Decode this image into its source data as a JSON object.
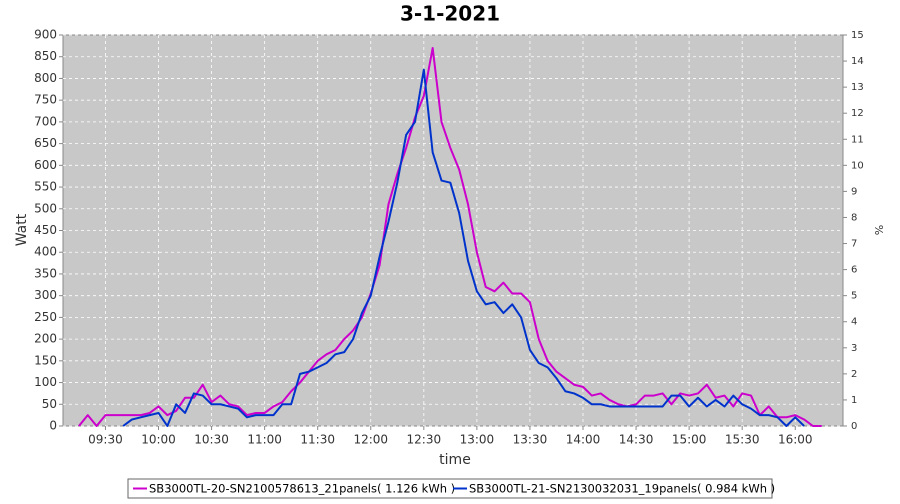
{
  "chart_data": {
    "type": "line",
    "title": "3-1-2021",
    "x_label": "time",
    "y_label": "Watt",
    "y2_label": "%",
    "x": [
      "09:15",
      "09:20",
      "09:25",
      "09:30",
      "09:35",
      "09:40",
      "09:45",
      "09:50",
      "09:55",
      "10:00",
      "10:05",
      "10:10",
      "10:15",
      "10:20",
      "10:25",
      "10:30",
      "10:35",
      "10:40",
      "10:45",
      "10:50",
      "10:55",
      "11:00",
      "11:05",
      "11:10",
      "11:15",
      "11:20",
      "11:25",
      "11:30",
      "11:35",
      "11:40",
      "11:45",
      "11:50",
      "11:55",
      "12:00",
      "12:05",
      "12:10",
      "12:15",
      "12:20",
      "12:25",
      "12:30",
      "12:35",
      "12:40",
      "12:45",
      "12:50",
      "12:55",
      "13:00",
      "13:05",
      "13:10",
      "13:15",
      "13:20",
      "13:25",
      "13:30",
      "13:35",
      "13:40",
      "13:45",
      "13:50",
      "13:55",
      "14:00",
      "14:05",
      "14:10",
      "14:15",
      "14:20",
      "14:25",
      "14:30",
      "14:35",
      "14:40",
      "14:45",
      "14:50",
      "14:55",
      "15:00",
      "15:05",
      "15:10",
      "15:15",
      "15:20",
      "15:25",
      "15:30",
      "15:35",
      "15:40",
      "15:45",
      "15:50",
      "15:55",
      "16:00",
      "16:05",
      "16:10",
      "16:15"
    ],
    "series": [
      {
        "name": "SB3000TL-20-SN2100578613_21panels( 1.126 kWh )",
        "color": "#cc00cc",
        "values": [
          0,
          25,
          0,
          25,
          25,
          25,
          25,
          25,
          30,
          45,
          25,
          35,
          65,
          65,
          95,
          55,
          70,
          50,
          45,
          25,
          30,
          30,
          45,
          55,
          80,
          100,
          125,
          150,
          165,
          175,
          200,
          220,
          250,
          305,
          370,
          510,
          580,
          640,
          710,
          760,
          870,
          700,
          640,
          590,
          510,
          400,
          320,
          310,
          330,
          305,
          305,
          285,
          200,
          150,
          125,
          110,
          95,
          90,
          70,
          75,
          60,
          50,
          45,
          50,
          70,
          70,
          75,
          50,
          75,
          70,
          75,
          95,
          65,
          70,
          45,
          75,
          70,
          25,
          45,
          20,
          20,
          25,
          15,
          0,
          0
        ]
      },
      {
        "name": "SB3000TL-21-SN2130032031_19panels( 0.984 kWh )",
        "color": "#0033cc",
        "values": [
          null,
          null,
          null,
          null,
          null,
          0,
          15,
          20,
          25,
          30,
          0,
          50,
          30,
          75,
          70,
          50,
          50,
          45,
          40,
          20,
          25,
          25,
          25,
          50,
          50,
          120,
          125,
          135,
          145,
          165,
          170,
          200,
          260,
          300,
          390,
          470,
          560,
          670,
          700,
          820,
          630,
          565,
          560,
          490,
          380,
          310,
          280,
          285,
          260,
          280,
          250,
          175,
          145,
          135,
          110,
          80,
          75,
          65,
          50,
          50,
          45,
          45,
          45,
          45,
          45,
          45,
          45,
          70,
          70,
          45,
          65,
          45,
          60,
          45,
          70,
          50,
          40,
          25,
          25,
          20,
          0,
          20,
          0,
          null,
          null
        ]
      }
    ],
    "xlim": [
      "09:06",
      "16:27"
    ],
    "xticks": [
      "09:30",
      "10:00",
      "10:30",
      "11:00",
      "11:30",
      "12:00",
      "12:30",
      "13:00",
      "13:30",
      "14:00",
      "14:30",
      "15:00",
      "15:30",
      "16:00"
    ],
    "ylim": [
      0,
      900
    ],
    "yticks": [
      0,
      50,
      100,
      150,
      200,
      250,
      300,
      350,
      400,
      450,
      500,
      550,
      600,
      650,
      700,
      750,
      800,
      850,
      900
    ],
    "y2lim": [
      0,
      15
    ],
    "y2ticks": [
      0,
      1,
      2,
      3,
      4,
      5,
      6,
      7,
      8,
      9,
      10,
      11,
      12,
      13,
      14,
      15
    ],
    "grid": true
  }
}
